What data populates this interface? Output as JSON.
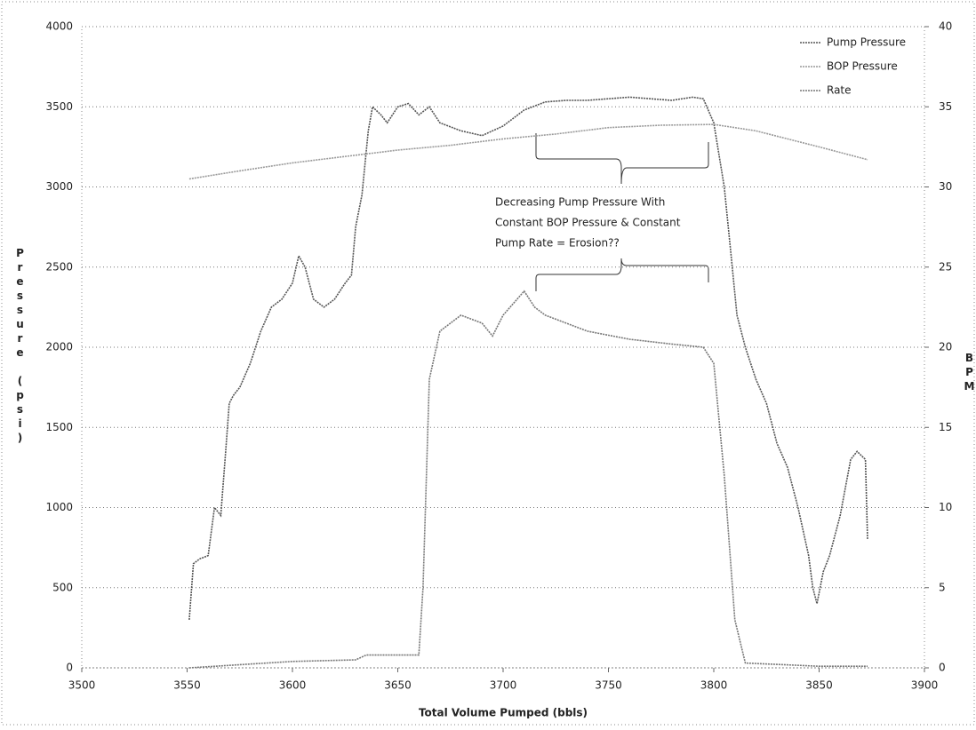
{
  "chart_data": {
    "type": "line",
    "xlabel": "Total Volume Pumped (bbls)",
    "ylabel": "Pressure (psi)",
    "y2label": "BPM",
    "annotation": [
      "Decreasing Pump Pressure With",
      "Constant BOP Pressure & Constant",
      "Pump Rate = Erosion??"
    ],
    "xlim": [
      3500,
      3900
    ],
    "xticks": [
      3500,
      3550,
      3600,
      3650,
      3700,
      3750,
      3800,
      3850,
      3900
    ],
    "ylim": [
      0,
      4000
    ],
    "yticks": [
      0,
      500,
      1000,
      1500,
      2000,
      2500,
      3000,
      3500,
      4000
    ],
    "y2lim": [
      0,
      40
    ],
    "y2ticks": [
      0,
      5,
      10,
      15,
      20,
      25,
      30,
      35,
      40
    ],
    "grid": true,
    "legend": "top-right",
    "series": [
      {
        "name": "Pump Pressure",
        "color": "#555555",
        "x": [
          3551,
          3553,
          3556,
          3560,
          3563,
          3566,
          3568,
          3570,
          3572,
          3575,
          3580,
          3585,
          3590,
          3595,
          3600,
          3603,
          3606,
          3610,
          3615,
          3620,
          3625,
          3628,
          3630,
          3633,
          3636,
          3638,
          3642,
          3645,
          3650,
          3655,
          3660,
          3665,
          3670,
          3680,
          3690,
          3700,
          3710,
          3720,
          3730,
          3740,
          3750,
          3760,
          3770,
          3780,
          3790,
          3795,
          3800,
          3805,
          3808,
          3811,
          3815,
          3820,
          3825,
          3830,
          3835,
          3840,
          3845,
          3847,
          3849,
          3852,
          3855,
          3860,
          3865,
          3868,
          3872,
          3873
        ],
        "values": [
          300,
          650,
          680,
          700,
          1000,
          950,
          1300,
          1650,
          1700,
          1750,
          1900,
          2100,
          2250,
          2300,
          2400,
          2570,
          2500,
          2300,
          2250,
          2300,
          2400,
          2450,
          2750,
          2950,
          3350,
          3500,
          3450,
          3400,
          3500,
          3520,
          3450,
          3500,
          3400,
          3350,
          3320,
          3380,
          3480,
          3530,
          3540,
          3540,
          3550,
          3560,
          3550,
          3540,
          3560,
          3550,
          3400,
          3000,
          2600,
          2200,
          2000,
          1800,
          1650,
          1400,
          1250,
          1000,
          700,
          500,
          400,
          600,
          700,
          950,
          1300,
          1350,
          1300,
          800
        ]
      },
      {
        "name": "BOP Pressure",
        "color": "#999999",
        "x": [
          3551,
          3575,
          3600,
          3625,
          3650,
          3675,
          3700,
          3725,
          3750,
          3775,
          3800,
          3820,
          3835,
          3850,
          3873
        ],
        "values": [
          3050,
          3100,
          3150,
          3190,
          3230,
          3260,
          3300,
          3330,
          3370,
          3385,
          3390,
          3350,
          3300,
          3250,
          3170
        ]
      },
      {
        "name": "Rate",
        "color": "#777777",
        "axis": "y2",
        "x": [
          3551,
          3600,
          3630,
          3635,
          3660,
          3662,
          3665,
          3670,
          3680,
          3690,
          3695,
          3700,
          3710,
          3715,
          3720,
          3740,
          3760,
          3780,
          3795,
          3800,
          3805,
          3810,
          3815,
          3850,
          3873
        ],
        "values": [
          0,
          0.4,
          0.5,
          0.8,
          0.8,
          5,
          18,
          21,
          22,
          21.5,
          20.7,
          22,
          23.5,
          22.5,
          22,
          21,
          20.5,
          20.2,
          20,
          19,
          12,
          3,
          0.3,
          0.1,
          0.1
        ]
      }
    ]
  }
}
